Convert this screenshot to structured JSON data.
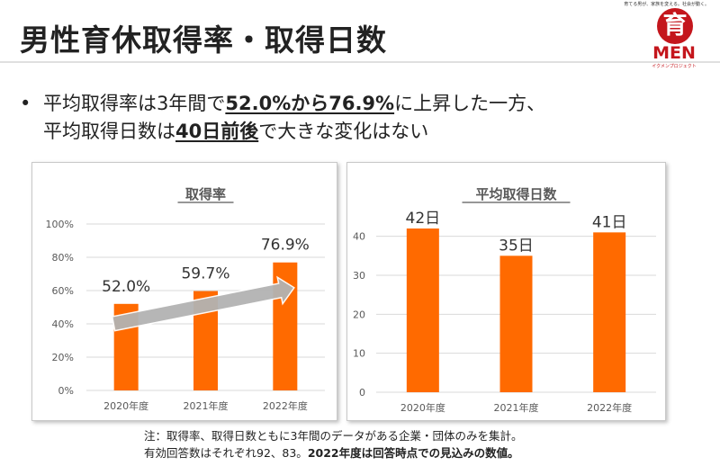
{
  "title": "男性育休取得率・取得日数",
  "logo": {
    "tagline": "育てる男が、家族を変える。社会が動く。",
    "glyph": "育",
    "word": "MEN",
    "sub": "イクメンプロジェクト",
    "color": "#c4161c"
  },
  "bullet": {
    "symbol": "•",
    "line1_a": "平均取得率は3年間で",
    "line1_hl": "52.0%から76.9%",
    "line1_b": "に上昇した一方、",
    "line2_a": "平均取得日数は",
    "line2_hl": "40日前後",
    "line2_b": "で大きな変化はない"
  },
  "note": {
    "line1": "注：取得率、取得日数ともに3年間のデータがある企業・団体のみを集計。",
    "line2_a": "有効回答数はそれぞれ92、83。",
    "line2_b": "2022年度は回答時点での見込みの数値。"
  },
  "colors": {
    "bar": "#ff6a00",
    "grid": "#d9d9d9",
    "axis_text": "#595959",
    "arrow": "#b3b3b3"
  },
  "chart_data": [
    {
      "type": "bar",
      "title": "取得率",
      "categories": [
        "2020年度",
        "2021年度",
        "2022年度"
      ],
      "values": [
        52.0,
        59.7,
        76.9
      ],
      "data_labels": [
        "52.0%",
        "59.7%",
        "76.9%"
      ],
      "ylim": [
        0,
        100
      ],
      "yticks": [
        0,
        20,
        40,
        60,
        80,
        100
      ],
      "ytick_labels": [
        "0%",
        "20%",
        "40%",
        "60%",
        "80%",
        "100%"
      ],
      "grid": true,
      "annotation": "upward trend arrow"
    },
    {
      "type": "bar",
      "title": "平均取得日数",
      "categories": [
        "2020年度",
        "2021年度",
        "2022年度"
      ],
      "values": [
        42,
        35,
        41
      ],
      "data_labels": [
        "42日",
        "35日",
        "41日"
      ],
      "ylim": [
        0,
        45
      ],
      "yticks": [
        0,
        10,
        20,
        30,
        40
      ],
      "ytick_labels": [
        "0",
        "10",
        "20",
        "30",
        "40"
      ],
      "grid": true
    }
  ]
}
